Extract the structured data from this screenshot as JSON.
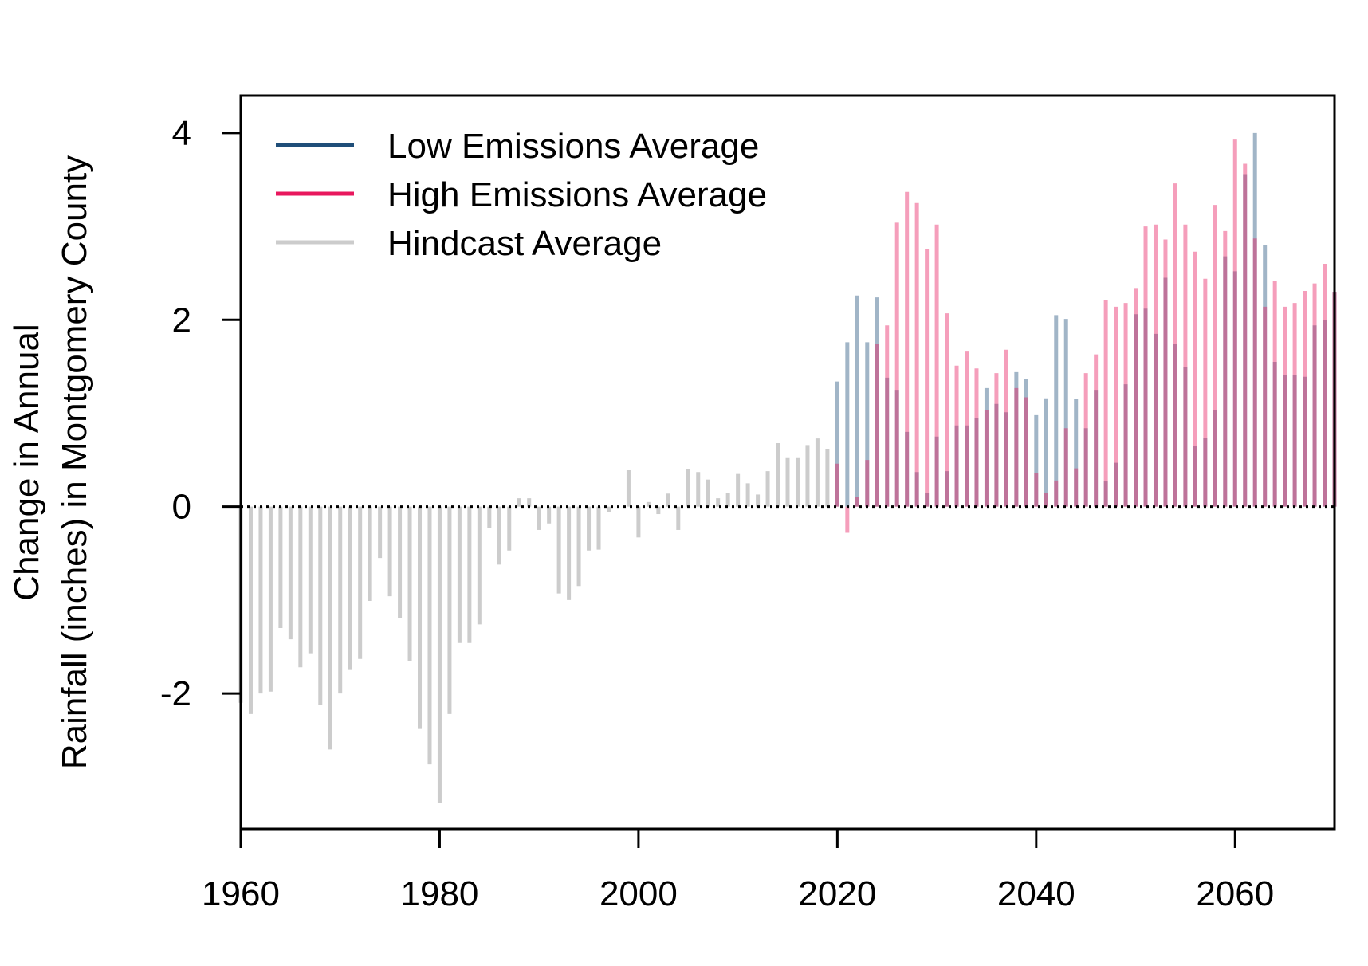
{
  "chart_data": {
    "type": "bar",
    "ylabel_line1": "Change in Annual",
    "ylabel_line2": "Rainfall (inches) in Montgomery County",
    "xlim": [
      1960,
      2070
    ],
    "ylim": [
      -3.45,
      4.4
    ],
    "x_ticks": [
      1960,
      1980,
      2000,
      2020,
      2040,
      2060
    ],
    "x_tick_labels": [
      "1960",
      "1980",
      "2000",
      "2020",
      "2040",
      "2060"
    ],
    "y_ticks": [
      -2,
      0,
      2,
      4
    ],
    "y_tick_labels": [
      "-2",
      "0",
      "2",
      "4"
    ],
    "zero_line": {
      "y": 0,
      "style": "dotted"
    },
    "grid": false,
    "legend": {
      "position": "top-left",
      "entries": [
        {
          "label": "Low Emissions Average",
          "color": "#1f4e79"
        },
        {
          "label": "High Emissions Average",
          "color": "#e8175d"
        },
        {
          "label": "Hindcast Average",
          "color": "#cccccc"
        }
      ]
    },
    "series": [
      {
        "name": "Hindcast Average",
        "color": "#cccccc",
        "x": [
          1960,
          1961,
          1962,
          1963,
          1964,
          1965,
          1966,
          1967,
          1968,
          1969,
          1970,
          1971,
          1972,
          1973,
          1974,
          1975,
          1976,
          1977,
          1978,
          1979,
          1980,
          1981,
          1982,
          1983,
          1984,
          1985,
          1986,
          1987,
          1988,
          1989,
          1990,
          1991,
          1992,
          1993,
          1994,
          1995,
          1996,
          1997,
          1998,
          1999,
          2000,
          2001,
          2002,
          2003,
          2004,
          2005,
          2006,
          2007,
          2008,
          2009,
          2010,
          2011,
          2012,
          2013,
          2014,
          2015,
          2016,
          2017,
          2018,
          2019
        ],
        "values": [
          -2.1,
          -2.22,
          -2.0,
          -1.98,
          -1.3,
          -1.42,
          -1.72,
          -1.57,
          -2.12,
          -2.6,
          -2.0,
          -1.74,
          -1.63,
          -1.01,
          -0.55,
          -0.96,
          -1.19,
          -1.65,
          -2.38,
          -2.76,
          -3.17,
          -2.22,
          -1.46,
          -1.46,
          -1.26,
          -0.23,
          -0.62,
          -0.47,
          0.09,
          0.09,
          -0.25,
          -0.18,
          -0.93,
          -1.0,
          -0.85,
          -0.47,
          -0.46,
          -0.06,
          0.0,
          0.39,
          -0.33,
          0.05,
          -0.08,
          0.14,
          -0.25,
          0.4,
          0.37,
          0.29,
          0.09,
          0.15,
          0.35,
          0.25,
          0.13,
          0.38,
          0.68,
          0.52,
          0.52,
          0.66,
          0.73,
          0.62
        ]
      },
      {
        "name": "Low Emissions Average",
        "color": "#1f4e79",
        "x": [
          2020,
          2021,
          2022,
          2023,
          2024,
          2025,
          2026,
          2027,
          2028,
          2029,
          2030,
          2031,
          2032,
          2033,
          2034,
          2035,
          2036,
          2037,
          2038,
          2039,
          2040,
          2041,
          2042,
          2043,
          2044,
          2045,
          2046,
          2047,
          2048,
          2049,
          2050,
          2051,
          2052,
          2053,
          2054,
          2055,
          2056,
          2057,
          2058,
          2059,
          2060,
          2061,
          2062,
          2063,
          2064,
          2065,
          2066,
          2067,
          2068,
          2069,
          2070
        ],
        "values": [
          1.34,
          1.76,
          2.26,
          1.76,
          2.24,
          1.38,
          1.25,
          0.8,
          0.37,
          0.15,
          0.75,
          0.38,
          0.87,
          0.87,
          0.95,
          1.27,
          1.1,
          1.01,
          1.44,
          1.37,
          0.98,
          1.16,
          2.05,
          2.01,
          1.15,
          0.84,
          1.25,
          0.27,
          0.47,
          1.31,
          2.06,
          2.12,
          1.85,
          2.45,
          1.74,
          1.49,
          0.65,
          0.74,
          1.03,
          2.68,
          2.52,
          3.56,
          4.0,
          2.8,
          1.55,
          1.41,
          1.41,
          1.39,
          1.94,
          2.0,
          2.3
        ]
      },
      {
        "name": "High Emissions Average",
        "color": "#e8175d",
        "x": [
          2020,
          2021,
          2022,
          2023,
          2024,
          2025,
          2026,
          2027,
          2028,
          2029,
          2030,
          2031,
          2032,
          2033,
          2034,
          2035,
          2036,
          2037,
          2038,
          2039,
          2040,
          2041,
          2042,
          2043,
          2044,
          2045,
          2046,
          2047,
          2048,
          2049,
          2050,
          2051,
          2052,
          2053,
          2054,
          2055,
          2056,
          2057,
          2058,
          2059,
          2060,
          2061,
          2062,
          2063,
          2064,
          2065,
          2066,
          2067,
          2068,
          2069,
          2070
        ],
        "values": [
          0.46,
          -0.28,
          0.1,
          0.5,
          1.74,
          1.94,
          3.04,
          3.37,
          3.25,
          2.76,
          3.02,
          2.07,
          1.51,
          1.66,
          1.48,
          1.03,
          1.43,
          1.68,
          1.27,
          1.17,
          0.36,
          0.15,
          0.28,
          0.84,
          0.41,
          1.43,
          1.63,
          2.21,
          2.14,
          2.18,
          2.34,
          3.0,
          3.02,
          2.86,
          3.46,
          3.02,
          2.73,
          2.44,
          3.23,
          2.95,
          3.93,
          3.67,
          2.87,
          2.14,
          2.42,
          2.14,
          2.18,
          2.31,
          2.39,
          2.6,
          2.3
        ]
      }
    ]
  }
}
